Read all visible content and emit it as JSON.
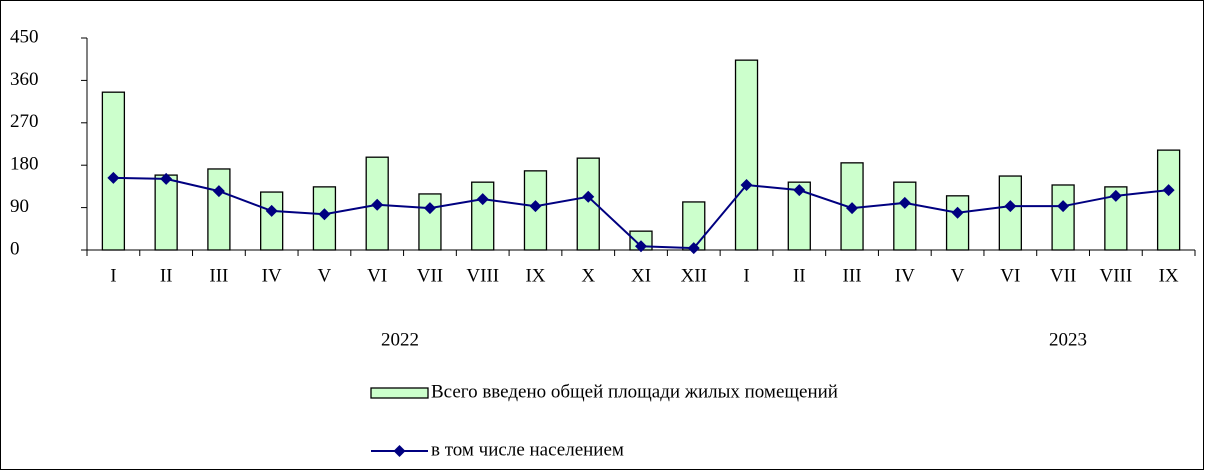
{
  "chart_data": {
    "type": "bar",
    "categories": [
      "I",
      "II",
      "III",
      "IV",
      "V",
      "VI",
      "VII",
      "VIII",
      "IX",
      "X",
      "XI",
      "XII",
      "I",
      "II",
      "III",
      "IV",
      "V",
      "VI",
      "VII",
      "VIII",
      "IX"
    ],
    "year_labels": [
      "2022",
      "2023"
    ],
    "series": [
      {
        "name": "Всего введено общей площади жилых помещений",
        "type": "bar",
        "color": "#ccffcc",
        "values": [
          335,
          159,
          172,
          123,
          134,
          197,
          119,
          144,
          168,
          195,
          40,
          102,
          403,
          144,
          185,
          144,
          115,
          157,
          138,
          134,
          212
        ]
      },
      {
        "name": "в том числе населением",
        "type": "line",
        "color": "#000080",
        "values": [
          153,
          151,
          125,
          83,
          76,
          96,
          89,
          108,
          93,
          113,
          8,
          4,
          138,
          127,
          89,
          100,
          79,
          93,
          93,
          115,
          127
        ]
      }
    ],
    "ylim": [
      0,
      450
    ],
    "yticks": [
      0,
      90,
      180,
      270,
      360,
      450
    ]
  }
}
